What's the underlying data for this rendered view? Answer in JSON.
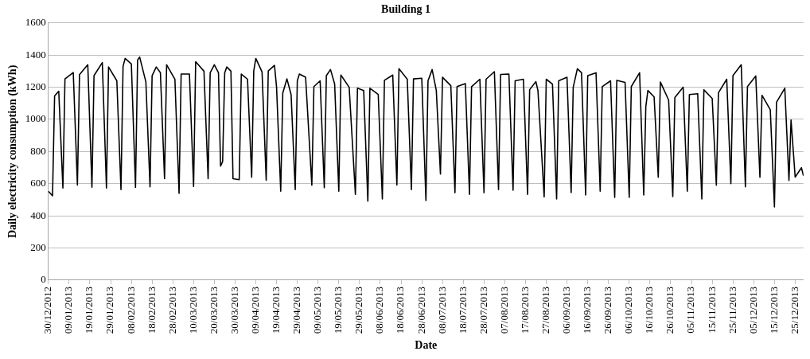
{
  "chart_data": {
    "type": "line",
    "title": "Building 1",
    "xlabel": "Date",
    "ylabel": "Daily electricity consumption (kWh)",
    "xlim": [
      "2012-12-30",
      "2013-12-29"
    ],
    "ylim": [
      0,
      1600
    ],
    "yticks": [
      0,
      200,
      400,
      600,
      800,
      1000,
      1200,
      1400,
      1600
    ],
    "xticks": [
      {
        "value": "2012-12-30",
        "label": "30/12/2012"
      },
      {
        "value": "2013-01-09",
        "label": "09/01/2013"
      },
      {
        "value": "2013-01-19",
        "label": "19/01/2013"
      },
      {
        "value": "2013-01-29",
        "label": "29/01/2013"
      },
      {
        "value": "2013-02-08",
        "label": "08/02/2013"
      },
      {
        "value": "2013-02-18",
        "label": "18/02/2013"
      },
      {
        "value": "2013-02-28",
        "label": "28/02/2013"
      },
      {
        "value": "2013-03-10",
        "label": "10/03/2013"
      },
      {
        "value": "2013-03-20",
        "label": "20/03/2013"
      },
      {
        "value": "2013-03-30",
        "label": "30/03/2013"
      },
      {
        "value": "2013-04-09",
        "label": "09/04/2013"
      },
      {
        "value": "2013-04-19",
        "label": "19/04/2013"
      },
      {
        "value": "2013-04-29",
        "label": "29/04/2013"
      },
      {
        "value": "2013-05-09",
        "label": "09/05/2013"
      },
      {
        "value": "2013-05-19",
        "label": "19/05/2013"
      },
      {
        "value": "2013-05-29",
        "label": "29/05/2013"
      },
      {
        "value": "2013-06-08",
        "label": "08/06/2013"
      },
      {
        "value": "2013-06-18",
        "label": "18/06/2013"
      },
      {
        "value": "2013-06-28",
        "label": "28/06/2013"
      },
      {
        "value": "2013-07-08",
        "label": "08/07/2013"
      },
      {
        "value": "2013-07-18",
        "label": "18/07/2013"
      },
      {
        "value": "2013-07-28",
        "label": "28/07/2013"
      },
      {
        "value": "2013-08-07",
        "label": "07/08/2013"
      },
      {
        "value": "2013-08-17",
        "label": "17/08/2013"
      },
      {
        "value": "2013-08-27",
        "label": "27/08/2013"
      },
      {
        "value": "2013-09-06",
        "label": "06/09/2013"
      },
      {
        "value": "2013-09-16",
        "label": "16/09/2013"
      },
      {
        "value": "2013-09-26",
        "label": "26/09/2013"
      },
      {
        "value": "2013-10-06",
        "label": "06/10/2013"
      },
      {
        "value": "2013-10-16",
        "label": "16/10/2013"
      },
      {
        "value": "2013-10-26",
        "label": "26/10/2013"
      },
      {
        "value": "2013-11-05",
        "label": "05/11/2013"
      },
      {
        "value": "2013-11-15",
        "label": "15/11/2013"
      },
      {
        "value": "2013-11-25",
        "label": "25/11/2013"
      },
      {
        "value": "2013-12-05",
        "label": "05/12/2013"
      },
      {
        "value": "2013-12-15",
        "label": "15/12/2013"
      },
      {
        "value": "2013-12-25",
        "label": "25/12/2013"
      }
    ],
    "grid": "y",
    "legend": false,
    "marker": "none",
    "line_style": "solid",
    "series": [
      {
        "color": "#000000",
        "x": [
          "2012-12-30",
          "2013-01-01",
          "2013-01-02",
          "2013-01-04",
          "2013-01-06",
          "2013-01-07",
          "2013-01-11",
          "2013-01-13",
          "2013-01-14",
          "2013-01-18",
          "2013-01-20",
          "2013-01-21",
          "2013-01-25",
          "2013-01-27",
          "2013-01-28",
          "2013-02-01",
          "2013-02-03",
          "2013-02-04",
          "2013-02-05",
          "2013-02-08",
          "2013-02-10",
          "2013-02-11",
          "2013-02-12",
          "2013-02-15",
          "2013-02-17",
          "2013-02-18",
          "2013-02-20",
          "2013-02-22",
          "2013-02-24",
          "2013-02-25",
          "2013-03-01",
          "2013-03-03",
          "2013-03-04",
          "2013-03-08",
          "2013-03-10",
          "2013-03-11",
          "2013-03-15",
          "2013-03-17",
          "2013-03-18",
          "2013-03-20",
          "2013-03-22",
          "2013-03-23",
          "2013-03-24",
          "2013-03-25",
          "2013-03-26",
          "2013-03-28",
          "2013-03-29",
          "2013-04-01",
          "2013-04-02",
          "2013-04-05",
          "2013-04-07",
          "2013-04-08",
          "2013-04-09",
          "2013-04-12",
          "2013-04-14",
          "2013-04-15",
          "2013-04-18",
          "2013-04-19",
          "2013-04-21",
          "2013-04-22",
          "2013-04-24",
          "2013-04-26",
          "2013-04-28",
          "2013-04-29",
          "2013-04-30",
          "2013-05-03",
          "2013-05-06",
          "2013-05-07",
          "2013-05-10",
          "2013-05-12",
          "2013-05-13",
          "2013-05-15",
          "2013-05-17",
          "2013-05-19",
          "2013-05-20",
          "2013-05-24",
          "2013-05-27",
          "2013-05-28",
          "2013-05-31",
          "2013-06-02",
          "2013-06-03",
          "2013-06-07",
          "2013-06-09",
          "2013-06-10",
          "2013-06-14",
          "2013-06-16",
          "2013-06-17",
          "2013-06-21",
          "2013-06-23",
          "2013-06-24",
          "2013-06-28",
          "2013-06-30",
          "2013-07-01",
          "2013-07-03",
          "2013-07-05",
          "2013-07-07",
          "2013-07-08",
          "2013-07-12",
          "2013-07-14",
          "2013-07-15",
          "2013-07-19",
          "2013-07-21",
          "2013-07-22",
          "2013-07-26",
          "2013-07-28",
          "2013-07-29",
          "2013-08-02",
          "2013-08-04",
          "2013-08-05",
          "2013-08-09",
          "2013-08-11",
          "2013-08-12",
          "2013-08-16",
          "2013-08-18",
          "2013-08-19",
          "2013-08-22",
          "2013-08-23",
          "2013-08-26",
          "2013-08-27",
          "2013-08-30",
          "2013-09-01",
          "2013-09-02",
          "2013-09-06",
          "2013-09-08",
          "2013-09-09",
          "2013-09-11",
          "2013-09-13",
          "2013-09-15",
          "2013-09-16",
          "2013-09-20",
          "2013-09-22",
          "2013-09-23",
          "2013-09-27",
          "2013-09-29",
          "2013-09-30",
          "2013-10-04",
          "2013-10-06",
          "2013-10-07",
          "2013-10-11",
          "2013-10-13",
          "2013-10-14",
          "2013-10-15",
          "2013-10-18",
          "2013-10-20",
          "2013-10-21",
          "2013-10-25",
          "2013-10-27",
          "2013-10-28",
          "2013-11-01",
          "2013-11-03",
          "2013-11-04",
          "2013-11-08",
          "2013-11-10",
          "2013-11-11",
          "2013-11-15",
          "2013-11-17",
          "2013-11-18",
          "2013-11-22",
          "2013-11-24",
          "2013-11-25",
          "2013-11-29",
          "2013-12-01",
          "2013-12-02",
          "2013-12-06",
          "2013-12-08",
          "2013-12-09",
          "2013-12-13",
          "2013-12-15",
          "2013-12-16",
          "2013-12-20",
          "2013-12-22",
          "2013-12-23",
          "2013-12-25",
          "2013-12-28",
          "2013-12-29"
        ],
        "values": [
          553,
          525,
          1146,
          1175,
          573,
          1252,
          1291,
          592,
          1278,
          1340,
          578,
          1272,
          1353,
          573,
          1326,
          1240,
          563,
          1330,
          1379,
          1345,
          577,
          1369,
          1388,
          1233,
          580,
          1272,
          1326,
          1291,
          631,
          1340,
          1249,
          540,
          1282,
          1282,
          583,
          1359,
          1300,
          631,
          1290,
          1340,
          1290,
          709,
          738,
          1290,
          1326,
          1300,
          631,
          625,
          1282,
          1250,
          640,
          1301,
          1379,
          1295,
          621,
          1301,
          1336,
          1200,
          553,
          1165,
          1252,
          1155,
          563,
          1240,
          1282,
          1262,
          590,
          1204,
          1240,
          575,
          1272,
          1310,
          1220,
          553,
          1276,
          1200,
          534,
          1194,
          1180,
          491,
          1194,
          1155,
          505,
          1243,
          1276,
          592,
          1315,
          1250,
          563,
          1252,
          1256,
          495,
          1240,
          1310,
          1180,
          660,
          1262,
          1210,
          544,
          1204,
          1223,
          534,
          1204,
          1250,
          544,
          1250,
          1297,
          563,
          1280,
          1282,
          560,
          1240,
          1250,
          534,
          1185,
          1235,
          1180,
          518,
          1250,
          1220,
          505,
          1240,
          1262,
          545,
          1200,
          1315,
          1290,
          530,
          1272,
          1290,
          553,
          1204,
          1240,
          515,
          1243,
          1230,
          515,
          1204,
          1290,
          530,
          1080,
          1180,
          1140,
          640,
          1233,
          1120,
          520,
          1136,
          1200,
          553,
          1155,
          1160,
          505,
          1184,
          1130,
          590,
          1165,
          1250,
          600,
          1272,
          1340,
          580,
          1204,
          1270,
          640,
          1150,
          1060,
          456,
          1107,
          1194,
          620,
          996,
          641,
          699,
          650
        ]
      }
    ]
  }
}
